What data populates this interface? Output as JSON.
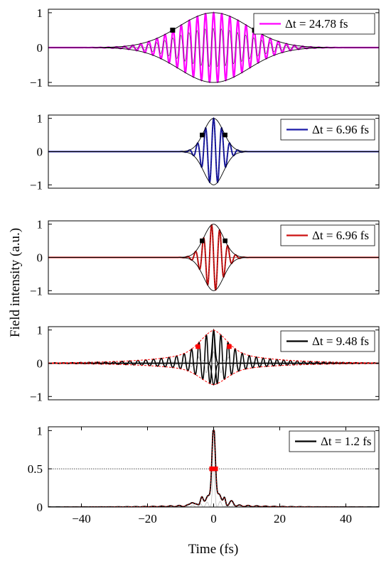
{
  "figure": {
    "ylabel": "Field intensity (a.u.)",
    "xlabel": "Time (fs)"
  },
  "chart_data": [
    {
      "type": "line",
      "legend": "Δt = 24.78 fs",
      "pulse_fwhm_fs": 24.78,
      "carrier_period_fs": 2.45,
      "xlim": [
        -50,
        50
      ],
      "ylim": [
        -1.1,
        1.1
      ],
      "yticks": [
        -1,
        0,
        1
      ],
      "ytick_labels": [
        "−1",
        "0",
        "1"
      ],
      "colors": {
        "line": "#ff00ff",
        "envelope": "#000000",
        "markers": "#000000"
      },
      "half_max_markers": [
        {
          "x": -12.4,
          "y": 0.5
        },
        {
          "x": 12.4,
          "y": 0.5
        }
      ],
      "legend_position": "top-right"
    },
    {
      "type": "line",
      "legend": "Δt = 6.96 fs",
      "pulse_fwhm_fs": 6.96,
      "carrier_period_fs": 2.45,
      "xlim": [
        -50,
        50
      ],
      "ylim": [
        -1.1,
        1.1
      ],
      "yticks": [
        -1,
        0,
        1
      ],
      "ytick_labels": [
        "−1",
        "0",
        "1"
      ],
      "colors": {
        "line": "#1a1aa8",
        "envelope": "#000000",
        "markers": "#000000"
      },
      "half_max_markers": [
        {
          "x": -3.48,
          "y": 0.5
        },
        {
          "x": 3.48,
          "y": 0.5
        }
      ],
      "legend_position": "top-right"
    },
    {
      "type": "line",
      "legend": "Δt = 6.96 fs",
      "pulse_fwhm_fs": 6.96,
      "carrier_period_fs": 2.45,
      "xlim": [
        -50,
        50
      ],
      "ylim": [
        -1.1,
        1.1
      ],
      "yticks": [
        -1,
        0,
        1
      ],
      "ytick_labels": [
        "−1",
        "0",
        "1"
      ],
      "colors": {
        "line": "#cc1111",
        "envelope": "#000000",
        "markers": "#000000"
      },
      "half_max_markers": [
        {
          "x": -3.48,
          "y": 0.5
        },
        {
          "x": 3.48,
          "y": 0.5
        }
      ],
      "legend_position": "top-right"
    },
    {
      "type": "line",
      "legend": "Δt = 9.48 fs",
      "pulse_fwhm_fs": 9.48,
      "xlim": [
        -50,
        50
      ],
      "ylim": [
        -1.1,
        1.1
      ],
      "yticks": [
        -1,
        0,
        1
      ],
      "ytick_labels": [
        "−1",
        "0",
        "1"
      ],
      "colors": {
        "line": "#000000",
        "envelope": "#ff0000",
        "markers": "#ff0000"
      },
      "half_max_markers": [
        {
          "x": -4.74,
          "y": 0.5
        },
        {
          "x": 4.74,
          "y": 0.5
        }
      ],
      "legend_position": "top-right"
    },
    {
      "type": "line",
      "legend": "Δt = 1.2 fs",
      "pulse_fwhm_fs": 1.2,
      "xlim": [
        -50,
        50
      ],
      "ylim": [
        0,
        1.05
      ],
      "yticks": [
        0,
        0.5,
        1
      ],
      "ytick_labels": [
        "0",
        "0.5",
        "1"
      ],
      "xticks": [
        -40,
        -20,
        0,
        20,
        40
      ],
      "xtick_labels": [
        "−40",
        "−20",
        "0",
        "20",
        "40"
      ],
      "colors": {
        "line": "#000000",
        "envelope": "#ff0000",
        "markers": "#ff0000"
      },
      "half_max_markers": [
        {
          "x": -0.6,
          "y": 0.5
        },
        {
          "x": 0.6,
          "y": 0.5
        }
      ],
      "half_level_line": 0.5,
      "legend_position": "top-right"
    }
  ]
}
